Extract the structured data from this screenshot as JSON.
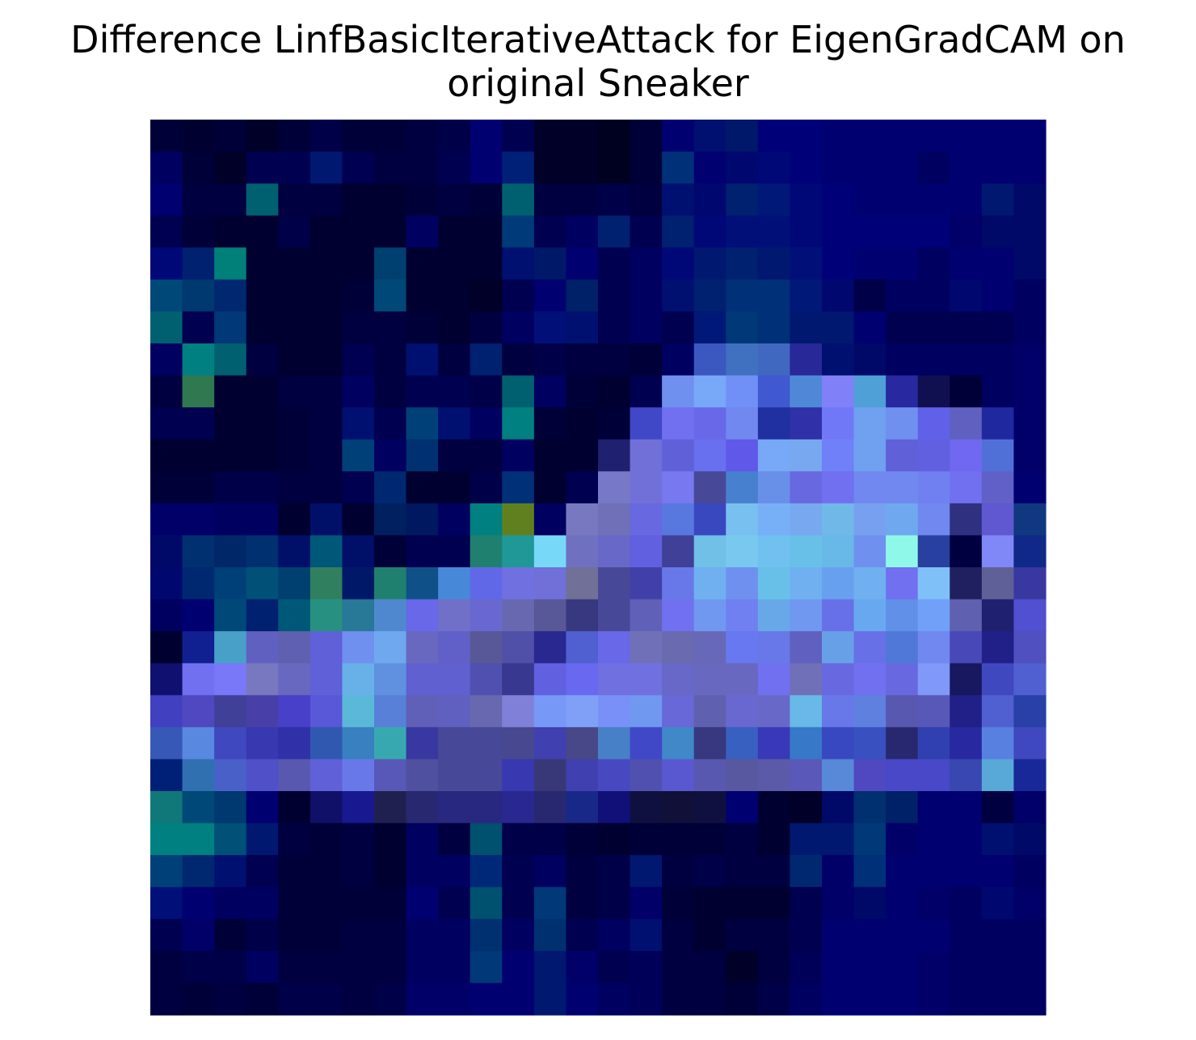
{
  "chart_data": {
    "type": "heatmap",
    "title_line1": "Difference LinfBasicIterativeAttack for EigenGradCAM on",
    "title_line2": "original Sneaker",
    "xlabel": "",
    "ylabel": "",
    "axes_visible": false,
    "grid": false,
    "legend": "none",
    "rows": 28,
    "cols": 28,
    "cells": [
      [
        "#000038",
        "#000030",
        "#000038",
        "#000028",
        "#000038",
        "#000048",
        "#000038",
        "#000038",
        "#000040",
        "#000048",
        "#000070",
        "#000050",
        "#000028",
        "#000028",
        "#000020",
        "#000038",
        "#000070",
        "#001070",
        "#00186a",
        "#000078",
        "#000078",
        "#000070",
        "#000070",
        "#000070",
        "#000070",
        "#000070",
        "#000070",
        "#000070"
      ],
      [
        "#000060",
        "#000038",
        "#000028",
        "#000050",
        "#000050",
        "#001870",
        "#000050",
        "#000040",
        "#000040",
        "#000050",
        "#000070",
        "#002078",
        "#000028",
        "#000028",
        "#000020",
        "#000038",
        "#003078",
        "#000070",
        "#000870",
        "#000878",
        "#000078",
        "#000070",
        "#000070",
        "#000070",
        "#000060",
        "#000070",
        "#000070",
        "#000070"
      ],
      [
        "#000070",
        "#000040",
        "#000040",
        "#006070",
        "#000040",
        "#000040",
        "#000030",
        "#000030",
        "#000038",
        "#000040",
        "#000038",
        "#006070",
        "#000040",
        "#000040",
        "#000048",
        "#000040",
        "#001070",
        "#000870",
        "#002070",
        "#001878",
        "#000878",
        "#000078",
        "#000070",
        "#000070",
        "#000070",
        "#000070",
        "#001870",
        "#000868"
      ],
      [
        "#000050",
        "#000038",
        "#000030",
        "#000030",
        "#000048",
        "#000030",
        "#000030",
        "#000030",
        "#000060",
        "#000030",
        "#000030",
        "#003a78",
        "#000050",
        "#000060",
        "#002070",
        "#000050",
        "#002070",
        "#000878",
        "#001078",
        "#001078",
        "#000878",
        "#000078",
        "#000078",
        "#000078",
        "#000078",
        "#000068",
        "#000868",
        "#000868"
      ],
      [
        "#000878",
        "#002070",
        "#008078",
        "#000030",
        "#000030",
        "#000030",
        "#000030",
        "#004070",
        "#000030",
        "#000030",
        "#000030",
        "#001070",
        "#001868",
        "#000070",
        "#000050",
        "#000060",
        "#000878",
        "#001870",
        "#002070",
        "#001870",
        "#001078",
        "#000078",
        "#000070",
        "#000070",
        "#000060",
        "#000070",
        "#000070",
        "#000868"
      ],
      [
        "#004878",
        "#003870",
        "#002870",
        "#000030",
        "#000030",
        "#000030",
        "#000038",
        "#004878",
        "#000030",
        "#000030",
        "#000028",
        "#000050",
        "#000070",
        "#002068",
        "#000050",
        "#000060",
        "#001070",
        "#002070",
        "#003078",
        "#003078",
        "#001878",
        "#000870",
        "#000048",
        "#000060",
        "#000060",
        "#000870",
        "#000070",
        "#000060"
      ],
      [
        "#006070",
        "#000050",
        "#003878",
        "#000030",
        "#000030",
        "#000030",
        "#000040",
        "#000040",
        "#000038",
        "#000030",
        "#000040",
        "#000060",
        "#001078",
        "#001070",
        "#000050",
        "#000060",
        "#000050",
        "#001878",
        "#003878",
        "#003078",
        "#001870",
        "#001870",
        "#000070",
        "#000050",
        "#000050",
        "#000050",
        "#000050",
        "#000060"
      ],
      [
        "#000060",
        "#008080",
        "#006070",
        "#000040",
        "#000030",
        "#000030",
        "#000050",
        "#000040",
        "#001070",
        "#000040",
        "#002070",
        "#000040",
        "#000048",
        "#000040",
        "#000040",
        "#000038",
        "#000060",
        "#3a58c0",
        "#4070c0",
        "#4068c0",
        "#282898",
        "#001070",
        "#000868",
        "#000060",
        "#000060",
        "#000060",
        "#000060",
        "#000068"
      ],
      [
        "#000040",
        "#307850",
        "#000030",
        "#000030",
        "#000040",
        "#000040",
        "#000060",
        "#000040",
        "#000050",
        "#000050",
        "#000048",
        "#006070",
        "#000060",
        "#000038",
        "#000030",
        "#000050",
        "#7090f0",
        "#78a8f8",
        "#7090f8",
        "#4058d0",
        "#5088d8",
        "#8080f8",
        "#50a0d8",
        "#2828a0",
        "#101050",
        "#000038",
        "#000060",
        "#000068"
      ],
      [
        "#000050",
        "#000050",
        "#000030",
        "#000030",
        "#000038",
        "#000040",
        "#001070",
        "#000050",
        "#004078",
        "#001070",
        "#000060",
        "#008080",
        "#000038",
        "#000030",
        "#000038",
        "#4048c8",
        "#7070f0",
        "#6868e8",
        "#7088f0",
        "#2030a0",
        "#3030a8",
        "#7078f8",
        "#70a0f0",
        "#7090f0",
        "#6060e8",
        "#6060c0",
        "#2028a0",
        "#000068"
      ],
      [
        "#000030",
        "#000030",
        "#000030",
        "#000030",
        "#000038",
        "#000040",
        "#004078",
        "#000060",
        "#003070",
        "#000040",
        "#000040",
        "#000060",
        "#000030",
        "#000030",
        "#202070",
        "#7070d8",
        "#6060d8",
        "#6870f0",
        "#6058e8",
        "#78a8f8",
        "#78a8f0",
        "#7080f8",
        "#70a0f0",
        "#6060d8",
        "#6060e0",
        "#7068f0",
        "#5070d8",
        "#000068"
      ],
      [
        "#000038",
        "#000038",
        "#000048",
        "#000048",
        "#000040",
        "#000040",
        "#000050",
        "#002870",
        "#000030",
        "#000030",
        "#000048",
        "#003078",
        "#000030",
        "#000050",
        "#7878c8",
        "#7070d8",
        "#7878f0",
        "#484898",
        "#4880d0",
        "#6890e8",
        "#6868e0",
        "#7070f0",
        "#7088f0",
        "#7088f0",
        "#7080f0",
        "#7070f0",
        "#6060c8",
        "#000070"
      ],
      [
        "#000068",
        "#000068",
        "#000060",
        "#000060",
        "#000030",
        "#001068",
        "#000030",
        "#002060",
        "#001860",
        "#000060",
        "#008080",
        "#608020",
        "#000060",
        "#7878c0",
        "#7070b8",
        "#6868e0",
        "#5878e0",
        "#3a48c0",
        "#78c0f0",
        "#78b0f8",
        "#78a8f0",
        "#70b8e8",
        "#78a0f0",
        "#70a8f0",
        "#7088f0",
        "#303080",
        "#6058d0",
        "#103880"
      ],
      [
        "#000868",
        "#003070",
        "#002868",
        "#003070",
        "#001068",
        "#005878",
        "#001068",
        "#000038",
        "#000050",
        "#000050",
        "#208070",
        "#209898",
        "#78d8f8",
        "#7070c0",
        "#6868c8",
        "#6060e0",
        "#404098",
        "#70c0e8",
        "#78c8f0",
        "#70c0f0",
        "#68c0e8",
        "#68b8e8",
        "#7090f0",
        "#90f8e8",
        "#2840a0",
        "#000040",
        "#8088f8",
        "#102888"
      ],
      [
        "#000870",
        "#002870",
        "#004078",
        "#005078",
        "#004070",
        "#308060",
        "#001868",
        "#208070",
        "#105088",
        "#4888d8",
        "#6068e8",
        "#7070e0",
        "#7070d8",
        "#707098",
        "#484898",
        "#4040a8",
        "#6878e8",
        "#70b0f0",
        "#7090f0",
        "#68c0e8",
        "#70b0f0",
        "#68a0f0",
        "#70b0f0",
        "#7070f0",
        "#80c0f8",
        "#202060",
        "#606098",
        "#3838a0"
      ],
      [
        "#000060",
        "#000070",
        "#004878",
        "#002070",
        "#005878",
        "#289080",
        "#287898",
        "#5088d0",
        "#6868e8",
        "#7070c8",
        "#6868d0",
        "#6868b0",
        "#585898",
        "#383880",
        "#484898",
        "#6060b8",
        "#7070f0",
        "#7098f0",
        "#7080f0",
        "#68a8e8",
        "#7098f0",
        "#6870e8",
        "#68a8f0",
        "#6090e8",
        "#70a0f8",
        "#6060b0",
        "#202070",
        "#5050d0"
      ],
      [
        "#000030",
        "#102090",
        "#48a0c8",
        "#6060c0",
        "#6060b0",
        "#6060d8",
        "#7090f0",
        "#70a8f0",
        "#6868c0",
        "#6060c8",
        "#585898",
        "#5050a8",
        "#282890",
        "#5060d0",
        "#6868e8",
        "#7070b8",
        "#6a6ab0",
        "#6868b8",
        "#6878f0",
        "#6878e8",
        "#6060c0",
        "#68a0e8",
        "#6870e8",
        "#5078d8",
        "#7088f0",
        "#4848b8",
        "#202088",
        "#5050c0"
      ],
      [
        "#101070",
        "#7070f0",
        "#7878f8",
        "#7878c0",
        "#6868c0",
        "#6060d8",
        "#68b0e8",
        "#6090e0",
        "#6060d0",
        "#6060d0",
        "#5050b0",
        "#383890",
        "#6060e0",
        "#6868f0",
        "#7070e0",
        "#7070e0",
        "#6868c8",
        "#6868c0",
        "#6868c0",
        "#7070f0",
        "#7070b8",
        "#6868e0",
        "#7070f0",
        "#6868e0",
        "#8098f8",
        "#181860",
        "#4048c0",
        "#5060d0"
      ],
      [
        "#4040c0",
        "#5048c0",
        "#404098",
        "#4840a8",
        "#4840c8",
        "#5858d8",
        "#5ab8d8",
        "#5880d8",
        "#6060b8",
        "#6060c0",
        "#6868b0",
        "#8080d8",
        "#7898f8",
        "#80a0f8",
        "#7890f8",
        "#7098f0",
        "#6868d8",
        "#6060b0",
        "#6868d0",
        "#6868c8",
        "#68b8e8",
        "#6878e8",
        "#6080e0",
        "#5858b0",
        "#5858b8",
        "#202088",
        "#5060d0",
        "#2840a8"
      ],
      [
        "#3858b8",
        "#5888e0",
        "#4048c0",
        "#3838b0",
        "#3030a8",
        "#3058b0",
        "#3880c0",
        "#38a8b0",
        "#3838a0",
        "#484898",
        "#484898",
        "#484890",
        "#4040b0",
        "#484888",
        "#4880c8",
        "#4048c8",
        "#4088c8",
        "#383880",
        "#3860c0",
        "#3838b8",
        "#3878c8",
        "#3848c0",
        "#3850c0",
        "#282870",
        "#3040b0",
        "#2828a0",
        "#5880e0",
        "#4048c0"
      ],
      [
        "#002078",
        "#3070b0",
        "#4860c8",
        "#5050c8",
        "#5858b0",
        "#6060d8",
        "#6878e8",
        "#5858b8",
        "#5050a0",
        "#484898",
        "#484898",
        "#3838b0",
        "#383878",
        "#4040b0",
        "#4848c0",
        "#5050b0",
        "#5a58d0",
        "#5858b0",
        "#5858a0",
        "#5a5aa8",
        "#5a58b8",
        "#5888d8",
        "#5048c0",
        "#4848c8",
        "#4848c8",
        "#3848b0",
        "#58a8d8",
        "#182898"
      ],
      [
        "#107878",
        "#004878",
        "#003870",
        "#000070",
        "#000030",
        "#101068",
        "#181890",
        "#202050",
        "#282870",
        "#282880",
        "#282880",
        "#282890",
        "#282870",
        "#182888",
        "#101078",
        "#101040",
        "#101038",
        "#101040",
        "#000070",
        "#000030",
        "#000028",
        "#000868",
        "#003070",
        "#002068",
        "#000070",
        "#000070",
        "#000040",
        "#000068"
      ],
      [
        "#008080",
        "#008080",
        "#005078",
        "#001870",
        "#000040",
        "#000038",
        "#000040",
        "#000030",
        "#000060",
        "#000040",
        "#005070",
        "#000048",
        "#000048",
        "#000038",
        "#000030",
        "#000038",
        "#000038",
        "#000038",
        "#000040",
        "#000030",
        "#001870",
        "#001870",
        "#003878",
        "#000068",
        "#000070",
        "#000070",
        "#001070",
        "#000868"
      ],
      [
        "#004078",
        "#002870",
        "#001070",
        "#000050",
        "#000038",
        "#000038",
        "#000040",
        "#000030",
        "#000060",
        "#000060",
        "#002878",
        "#000050",
        "#000060",
        "#000040",
        "#000048",
        "#001870",
        "#000040",
        "#000048",
        "#000040",
        "#000040",
        "#002870",
        "#000068",
        "#003078",
        "#000070",
        "#000070",
        "#000070",
        "#000070",
        "#000060"
      ],
      [
        "#001078",
        "#000070",
        "#000060",
        "#000060",
        "#000038",
        "#000038",
        "#000038",
        "#000038",
        "#000070",
        "#000050",
        "#005070",
        "#000050",
        "#003878",
        "#000040",
        "#000048",
        "#000068",
        "#000038",
        "#000030",
        "#000030",
        "#000030",
        "#000050",
        "#000068",
        "#000868",
        "#000070",
        "#000068",
        "#000060",
        "#000870",
        "#000068"
      ],
      [
        "#000050",
        "#000068",
        "#000038",
        "#000048",
        "#000038",
        "#000038",
        "#000040",
        "#000040",
        "#000060",
        "#000060",
        "#003070",
        "#000060",
        "#003070",
        "#000050",
        "#000060",
        "#001070",
        "#000040",
        "#000030",
        "#000040",
        "#000040",
        "#000050",
        "#000070",
        "#000070",
        "#000070",
        "#000070",
        "#000060",
        "#000060",
        "#000060"
      ],
      [
        "#000040",
        "#000048",
        "#000048",
        "#000060",
        "#000040",
        "#000040",
        "#000040",
        "#000040",
        "#000060",
        "#000060",
        "#003878",
        "#000070",
        "#001870",
        "#000068",
        "#000050",
        "#000058",
        "#000040",
        "#000040",
        "#000028",
        "#000040",
        "#000058",
        "#000070",
        "#000070",
        "#000070",
        "#000068",
        "#000060",
        "#000060",
        "#000060"
      ],
      [
        "#000040",
        "#000038",
        "#000040",
        "#000038",
        "#000048",
        "#000048",
        "#000040",
        "#000048",
        "#000068",
        "#000068",
        "#000070",
        "#000070",
        "#001870",
        "#000070",
        "#000060",
        "#000058",
        "#000040",
        "#000040",
        "#000038",
        "#000048",
        "#000060",
        "#000070",
        "#000070",
        "#000070",
        "#000068",
        "#000060",
        "#000060",
        "#000060"
      ]
    ]
  }
}
